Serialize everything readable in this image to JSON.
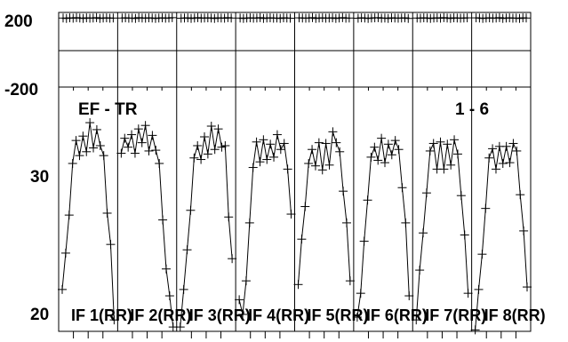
{
  "chart_data": {
    "type": "line",
    "title": "",
    "annotations": {
      "left": "EF - TR",
      "right": "1 - 6"
    },
    "phase_panel": {
      "y_tick_labels": [
        "200",
        "-200"
      ],
      "ylim": [
        -200,
        200
      ],
      "values_degrees": [
        [
          170,
          168,
          171,
          169,
          172,
          170,
          168,
          171,
          169,
          170,
          172,
          168,
          170,
          171,
          169,
          170
        ],
        [
          170,
          171,
          169,
          170,
          168,
          172,
          170,
          169,
          171,
          170,
          168,
          170,
          171,
          169,
          170,
          172
        ],
        [
          169,
          170,
          171,
          168,
          170,
          172,
          169,
          170,
          171,
          170,
          168,
          171,
          170,
          169,
          172,
          170
        ],
        [
          170,
          168,
          170,
          171,
          169,
          170,
          172,
          168,
          170,
          171,
          169,
          170,
          168,
          171,
          170,
          169
        ],
        [
          171,
          170,
          169,
          170,
          172,
          168,
          170,
          171,
          169,
          170,
          171,
          168,
          170,
          172,
          169,
          170
        ],
        [
          169,
          171,
          170,
          168,
          170,
          171,
          172,
          169,
          170,
          168,
          171,
          170,
          169,
          170,
          171,
          168
        ],
        [
          170,
          169,
          171,
          170,
          168,
          170,
          171,
          169,
          172,
          170,
          168,
          171,
          170,
          169,
          170,
          171
        ],
        [
          171,
          170,
          168,
          170,
          171,
          169,
          170,
          172,
          168,
          170,
          171,
          169,
          170,
          168,
          171,
          170
        ]
      ]
    },
    "amplitude_panel": {
      "y_tick_labels": [
        "30",
        "20"
      ],
      "ylim": [
        19.2,
        46
      ],
      "y_axis_values": [
        30,
        20
      ],
      "if_labels": [
        "IF 1(RR)",
        "IF 2(RR)",
        "IF 3(RR)",
        "IF 4(RR)",
        "IF 5(RR)",
        "IF 6(RR)",
        "IF 7(RR)",
        "IF 8(RR)"
      ],
      "values": [
        [
          22.3,
          25.4,
          29.1,
          35.0,
          38.0,
          36.0,
          38.6,
          36.5,
          40.5,
          37.0,
          39.5,
          37.3,
          36.0,
          29.3,
          26.2,
          20.0
        ],
        [
          36.3,
          38.3,
          37.1,
          38.8,
          36.3,
          39.6,
          37.7,
          40.1,
          36.6,
          38.7,
          36.7,
          35.0,
          28.6,
          24.0,
          21.8,
          19.5
        ],
        [
          19.5,
          22.3,
          25.7,
          29.6,
          35.7,
          37.3,
          35.5,
          38.5,
          36.2,
          40.0,
          36.8,
          39.6,
          37.1,
          37.3,
          28.9,
          24.9
        ],
        [
          21.5,
          20.4,
          23.0,
          28.3,
          34.5,
          37.8,
          35.2,
          38.1,
          35.5,
          37.5,
          35.8,
          38.8,
          36.8,
          37.6,
          34.3,
          29.2
        ],
        [
          22.7,
          26.7,
          30.0,
          35.0,
          36.8,
          34.7,
          37.7,
          34.2,
          37.6,
          34.8,
          39.2,
          37.7,
          36.5,
          31.7,
          28.3,
          23.0
        ],
        [
          20.2,
          22.0,
          26.5,
          30.7,
          35.8,
          37.1,
          35.4,
          38.3,
          35.1,
          37.5,
          36.1,
          38.0,
          36.8,
          32.1,
          28.3,
          21.8
        ],
        [
          20.0,
          23.9,
          27.3,
          31.5,
          36.6,
          37.6,
          34.3,
          37.8,
          34.3,
          37.5,
          34.8,
          38.1,
          36.2,
          31.2,
          27.1,
          22.0
        ],
        [
          19.3,
          22.3,
          25.3,
          29.8,
          35.7,
          36.9,
          34.3,
          37.2,
          35.0,
          37.2,
          35.1,
          37.6,
          36.6,
          31.3,
          27.5,
          22.5
        ]
      ]
    }
  }
}
